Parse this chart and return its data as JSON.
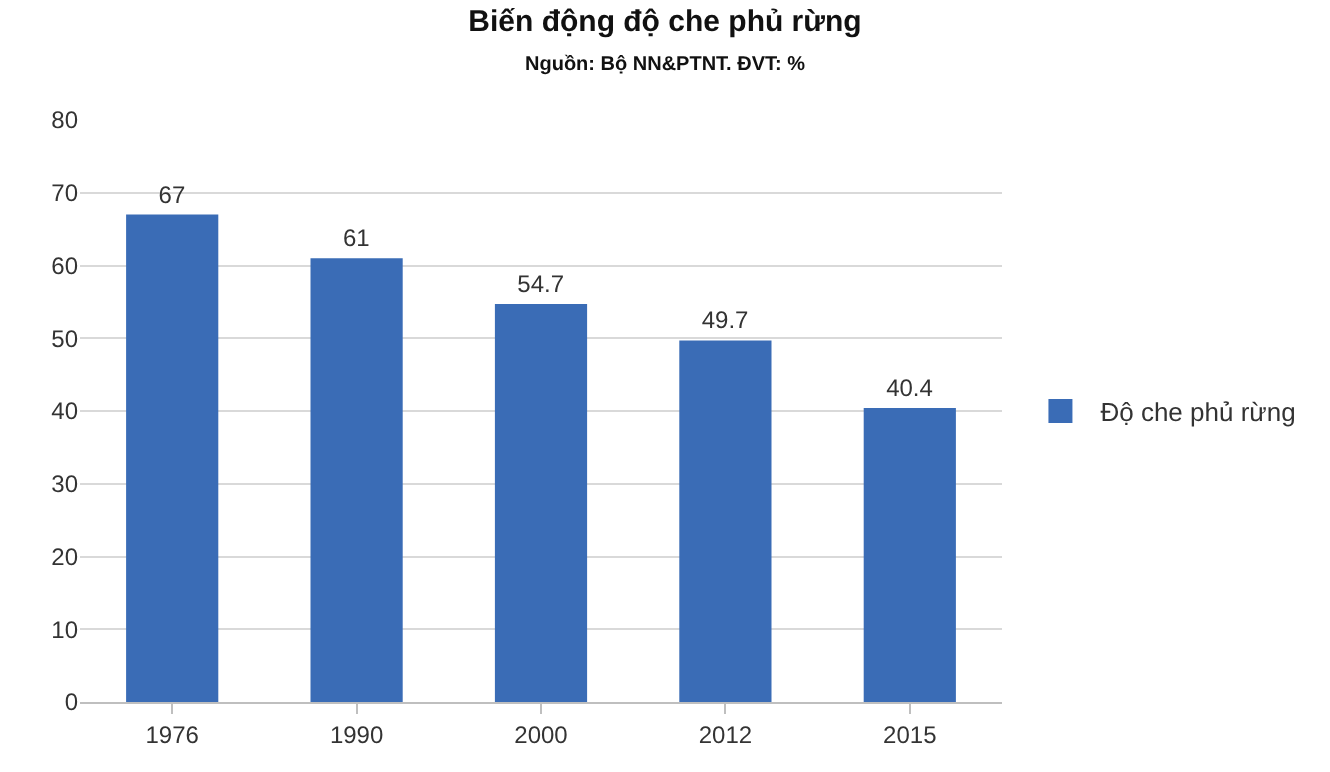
{
  "chart_data": {
    "type": "bar",
    "title": "Biến động độ che phủ rừng",
    "subtitle": "Nguồn: Bộ NN&PTNT. ĐVT: %",
    "categories": [
      "1976",
      "1990",
      "2000",
      "2012",
      "2015"
    ],
    "series": [
      {
        "name": "Độ che phủ rừng",
        "color": "#3a6cb6",
        "values": [
          67,
          61,
          54.7,
          49.7,
          40.4
        ]
      }
    ],
    "ylim": [
      0,
      80
    ],
    "yticks": [
      0,
      10,
      20,
      30,
      40,
      50,
      60,
      70,
      80
    ],
    "grid": "y",
    "legend": "right",
    "data_labels": true
  }
}
